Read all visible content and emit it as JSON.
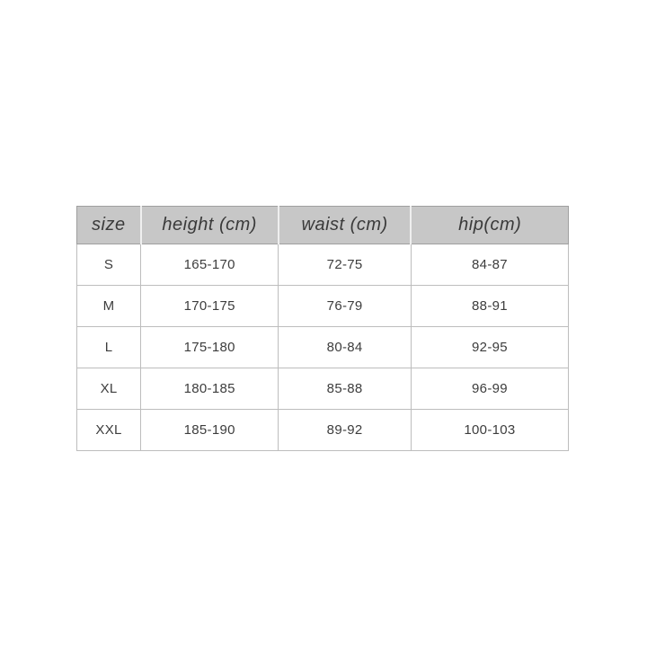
{
  "page": {
    "background_color": "#ffffff",
    "description": "Apparel size chart table centered on a plain white background"
  },
  "colors": {
    "header_background": "#c7c7c7",
    "table_border": "#9f9f9f",
    "cell_border": "#bdbdbd",
    "text": "#3a3a3a"
  },
  "chart_data": {
    "type": "table",
    "title": "",
    "columns": [
      "size",
      "height (cm)",
      "waist (cm)",
      "hip(cm)"
    ],
    "rows": [
      [
        "S",
        "165-170",
        "72-75",
        "84-87"
      ],
      [
        "M",
        "170-175",
        "76-79",
        "88-91"
      ],
      [
        "L",
        "175-180",
        "80-84",
        "92-95"
      ],
      [
        "XL",
        "180-185",
        "85-88",
        "96-99"
      ],
      [
        "XXL",
        "185-190",
        "89-92",
        "100-103"
      ]
    ]
  }
}
